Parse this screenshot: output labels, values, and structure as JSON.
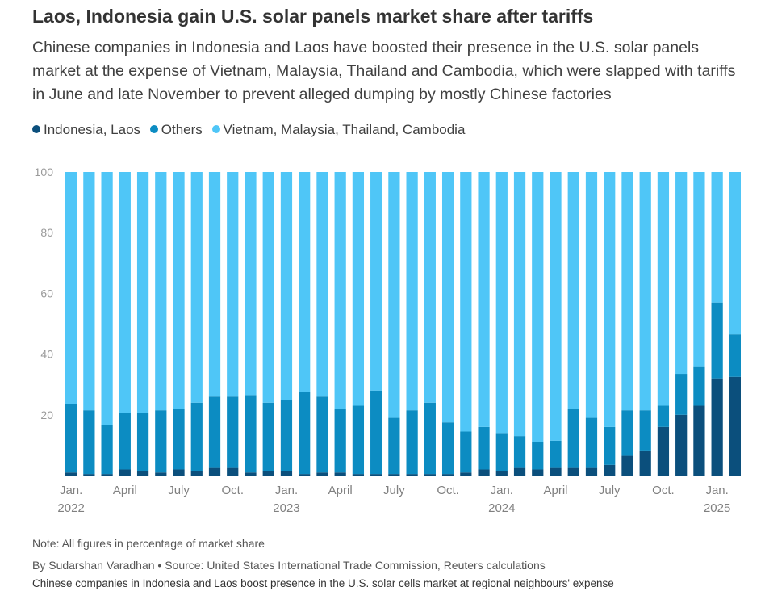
{
  "title": "Laos, Indonesia gain U.S. solar panels market share after tariffs",
  "subtitle": "Chinese companies in Indonesia and Laos have boosted their presence in the U.S. solar panels market at the expense of Vietnam, Malaysia, Thailand and Cambodia, which were slapped with tariffs in June and late November to prevent alleged dumping by mostly Chinese factories",
  "legend": [
    {
      "label": "Indonesia, Laos",
      "color": "#0b4f7c"
    },
    {
      "label": "Others",
      "color": "#0c8cc2"
    },
    {
      "label": "Vietnam, Malaysia, Thailand, Cambodia",
      "color": "#4fc6f7"
    }
  ],
  "note": "Note: All figures in percentage of market share",
  "byline": "By Sudarshan Varadhan • Source: United States International Trade Commission, Reuters calculations",
  "caption": "Chinese companies in Indonesia and Laos boost presence in the U.S. solar cells market at regional neighbours' expense",
  "chart_data": {
    "type": "bar",
    "stacked": true,
    "ylim": [
      0,
      100
    ],
    "yticks": [
      20,
      40,
      60,
      80,
      100
    ],
    "grid": false,
    "legend_position": "top-left",
    "categories": [
      "Jan. 2022",
      "Feb. 2022",
      "Mar. 2022",
      "Apr. 2022",
      "May 2022",
      "Jun. 2022",
      "Jul. 2022",
      "Aug. 2022",
      "Sep. 2022",
      "Oct. 2022",
      "Nov. 2022",
      "Dec. 2022",
      "Jan. 2023",
      "Feb. 2023",
      "Mar. 2023",
      "Apr. 2023",
      "May 2023",
      "Jun. 2023",
      "Jul. 2023",
      "Aug. 2023",
      "Sep. 2023",
      "Oct. 2023",
      "Nov. 2023",
      "Dec. 2023",
      "Jan. 2024",
      "Feb. 2024",
      "Mar. 2024",
      "Apr. 2024",
      "May 2024",
      "Jun. 2024",
      "Jul. 2024",
      "Aug. 2024",
      "Sep. 2024",
      "Oct. 2024",
      "Nov. 2024",
      "Dec. 2024",
      "Jan. 2025",
      "Feb. 2025"
    ],
    "tick_labels": [
      {
        "index": 0,
        "lines": [
          "Jan.",
          "2022"
        ]
      },
      {
        "index": 3,
        "lines": [
          "April"
        ]
      },
      {
        "index": 6,
        "lines": [
          "July"
        ]
      },
      {
        "index": 9,
        "lines": [
          "Oct."
        ]
      },
      {
        "index": 12,
        "lines": [
          "Jan.",
          "2023"
        ]
      },
      {
        "index": 15,
        "lines": [
          "April"
        ]
      },
      {
        "index": 18,
        "lines": [
          "July"
        ]
      },
      {
        "index": 21,
        "lines": [
          "Oct."
        ]
      },
      {
        "index": 24,
        "lines": [
          "Jan.",
          "2024"
        ]
      },
      {
        "index": 27,
        "lines": [
          "April"
        ]
      },
      {
        "index": 30,
        "lines": [
          "July"
        ]
      },
      {
        "index": 33,
        "lines": [
          "Oct."
        ]
      },
      {
        "index": 36,
        "lines": [
          "Jan.",
          "2025"
        ]
      }
    ],
    "series": [
      {
        "name": "Indonesia, Laos",
        "color": "#0b4f7c",
        "values": [
          1,
          0.5,
          0.5,
          2,
          1.5,
          1,
          2,
          1.5,
          2.5,
          2.5,
          1,
          1.5,
          1.5,
          0.5,
          1,
          1,
          0.5,
          0.5,
          0.5,
          0.5,
          0.5,
          0.5,
          1,
          2,
          1.5,
          2.5,
          2,
          2.5,
          2.5,
          2.5,
          3.5,
          6.5,
          8,
          16,
          20,
          23,
          32,
          32.5
        ]
      },
      {
        "name": "Others",
        "color": "#0c8cc2",
        "values": [
          22.5,
          21,
          16,
          18.5,
          19,
          20.5,
          20,
          22.5,
          23.5,
          23.5,
          25.5,
          22.5,
          23.5,
          27,
          25,
          21,
          22.5,
          27.5,
          18.5,
          21,
          23.5,
          17,
          13.5,
          14,
          12.5,
          10.5,
          9,
          9,
          19.5,
          16.5,
          12.5,
          15,
          13.5,
          7,
          13.5,
          13,
          25,
          14
        ]
      },
      {
        "name": "Vietnam, Malaysia, Thailand, Cambodia",
        "color": "#4fc6f7",
        "values": [
          76.5,
          78.5,
          83.5,
          79.5,
          79.5,
          78.5,
          78,
          76,
          74,
          74,
          73.5,
          76,
          75,
          72.5,
          74,
          78,
          77,
          72,
          81,
          78.5,
          76,
          82.5,
          85.5,
          84,
          86,
          87,
          89,
          88.5,
          78,
          81,
          84,
          78.5,
          78.5,
          77,
          66.5,
          64,
          43,
          53.5
        ]
      }
    ]
  }
}
